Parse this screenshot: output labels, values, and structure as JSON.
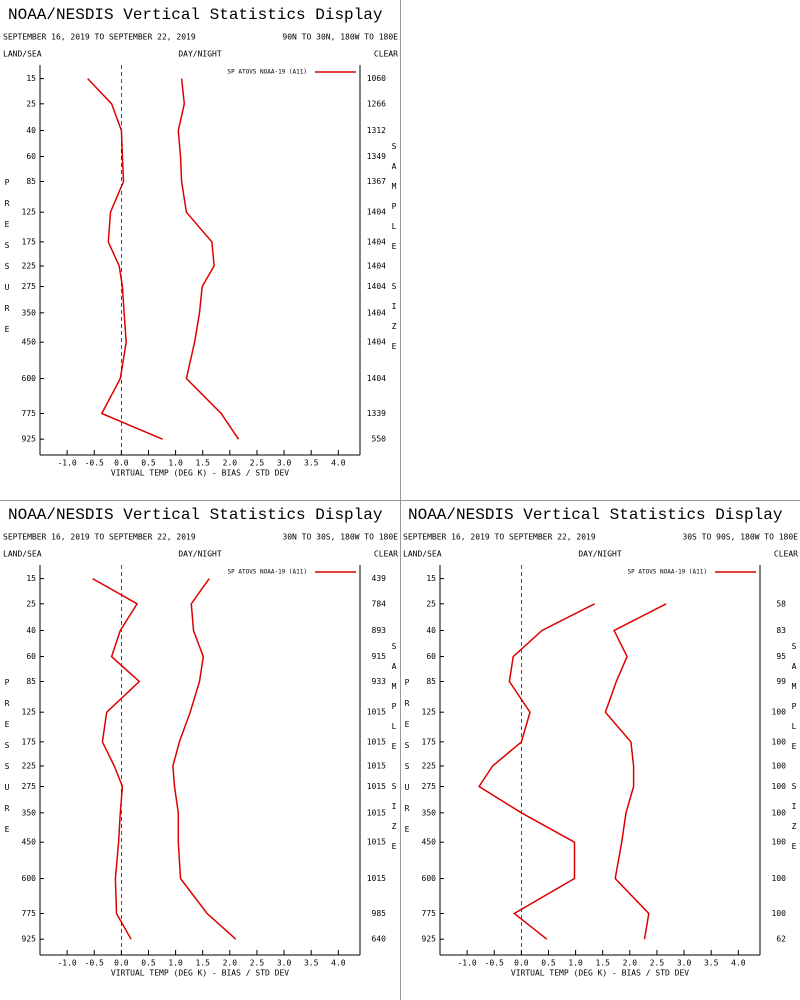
{
  "chart_data": [
    {
      "type": "line",
      "title": "NOAA/NESDIS Vertical Statistics Display",
      "period": "SEPTEMBER 16, 2019 TO SEPTEMBER 22, 2019",
      "region": "90N TO 30N, 180W TO 180E",
      "land_sea": "LAND/SEA",
      "day_night": "DAY/NIGHT",
      "sky": "CLEAR",
      "ylabel": "PRESSURE",
      "y2label": "SAMPLE SIZE",
      "xlabel": "VIRTUAL TEMP (DEG K) - BIAS / STD DEV",
      "legend": "SP ATOVS NOAA-19 (A11)",
      "y": [
        15,
        25,
        40,
        60,
        85,
        125,
        175,
        225,
        275,
        350,
        450,
        600,
        775,
        925
      ],
      "sample_sizes": [
        1060,
        1266,
        1312,
        1349,
        1367,
        1404,
        1404,
        1404,
        1404,
        1404,
        1404,
        1404,
        1339,
        550
      ],
      "series": [
        {
          "color": "#dd0000",
          "values": [
            -0.62,
            -0.18,
            0.0,
            0.02,
            0.04,
            -0.2,
            -0.24,
            -0.04,
            0.02,
            0.05,
            0.09,
            -0.02,
            -0.36,
            0.76
          ]
        },
        {
          "color": "#dd0000",
          "values": [
            1.11,
            1.16,
            1.05,
            1.09,
            1.11,
            1.2,
            1.67,
            1.71,
            1.49,
            1.44,
            1.35,
            1.2,
            1.84,
            2.16
          ]
        }
      ],
      "xlim": [
        -1.5,
        4.4
      ],
      "ylim": [
        11,
        1027
      ],
      "xticks": [
        {
          "value": -1,
          "label": "-1.0"
        },
        -0.5,
        {
          "value": 0,
          "label": "0.0"
        },
        0.5,
        {
          "value": 1,
          "label": "1.0"
        },
        1.5,
        {
          "value": 2,
          "label": "2.0"
        },
        2.5,
        {
          "value": 3,
          "label": "3.0"
        },
        3.5,
        {
          "value": 4,
          "label": "4.0"
        }
      ],
      "yticks": [
        15,
        25,
        40,
        60,
        85,
        125,
        175,
        225,
        275,
        350,
        450,
        600,
        775,
        925
      ]
    },
    {
      "type": "line",
      "title": "NOAA/NESDIS Vertical Statistics Display",
      "period": "SEPTEMBER 16, 2019 TO SEPTEMBER 22, 2019",
      "region": "30N TO 30S, 180W TO 180E",
      "land_sea": "LAND/SEA",
      "day_night": "DAY/NIGHT",
      "sky": "CLEAR",
      "ylabel": "PRESSURE",
      "y2label": "SAMPLE SIZE",
      "xlabel": "VIRTUAL TEMP (DEG K) - BIAS / STD DEV",
      "legend": "SP ATOVS NOAA-19 (A11)",
      "y": [
        15,
        25,
        40,
        60,
        85,
        125,
        175,
        225,
        275,
        350,
        450,
        600,
        775,
        925
      ],
      "sample_sizes": [
        439,
        784,
        893,
        915,
        933,
        1015,
        1015,
        1015,
        1015,
        1015,
        1015,
        1015,
        985,
        640
      ],
      "series": [
        {
          "color": "#dd0000",
          "values": [
            -0.53,
            0.29,
            -0.02,
            -0.18,
            0.33,
            -0.27,
            -0.35,
            -0.13,
            0.02,
            -0.02,
            -0.05,
            -0.11,
            -0.09,
            0.18
          ]
        },
        {
          "color": "#dd0000",
          "values": [
            1.62,
            1.29,
            1.33,
            1.51,
            1.44,
            1.27,
            1.07,
            0.95,
            0.98,
            1.05,
            1.05,
            1.09,
            1.58,
            2.11
          ]
        }
      ],
      "xlim": [
        -1.5,
        4.4
      ],
      "ylim": [
        11,
        1027
      ],
      "xticks": [
        {
          "value": -1,
          "label": "-1.0"
        },
        -0.5,
        {
          "value": 0,
          "label": "0.0"
        },
        0.5,
        {
          "value": 1,
          "label": "1.0"
        },
        1.5,
        {
          "value": 2,
          "label": "2.0"
        },
        2.5,
        {
          "value": 3,
          "label": "3.0"
        },
        3.5,
        {
          "value": 4,
          "label": "4.0"
        }
      ],
      "yticks": [
        15,
        25,
        40,
        60,
        85,
        125,
        175,
        225,
        275,
        350,
        450,
        600,
        775,
        925
      ]
    },
    {
      "type": "line",
      "title": "NOAA/NESDIS Vertical Statistics Display",
      "period": "SEPTEMBER 16, 2019 TO SEPTEMBER 22, 2019",
      "region": "30S TO 90S, 180W TO 180E",
      "land_sea": "LAND/SEA",
      "day_night": "DAY/NIGHT",
      "sky": "CLEAR",
      "ylabel": "PRESSURE",
      "y2label": "SAMPLE SIZE",
      "xlabel": "VIRTUAL TEMP (DEG K) - BIAS / STD DEV",
      "legend": "SP ATOVS NOAA-19 (A11)",
      "y": [
        15,
        25,
        40,
        60,
        85,
        125,
        175,
        225,
        275,
        350,
        450,
        600,
        775,
        925
      ],
      "sample_sizes": [
        null,
        58,
        83,
        95,
        99,
        100,
        100,
        100,
        100,
        100,
        100,
        100,
        100,
        62
      ],
      "series": [
        {
          "color": "#dd0000",
          "values": [
            null,
            1.35,
            0.38,
            -0.15,
            -0.22,
            0.16,
            0.0,
            -0.53,
            -0.78,
            0.0,
            0.98,
            0.98,
            -0.13,
            0.47
          ]
        },
        {
          "color": "#dd0000",
          "values": [
            null,
            2.67,
            1.71,
            1.95,
            1.75,
            1.55,
            2.02,
            2.07,
            2.07,
            1.93,
            1.85,
            1.73,
            2.35,
            2.27
          ]
        }
      ],
      "xlim": [
        -1.5,
        4.4
      ],
      "ylim": [
        11,
        1027
      ],
      "xticks": [
        {
          "value": -1,
          "label": "-1.0"
        },
        -0.5,
        {
          "value": 0,
          "label": "0.0"
        },
        0.5,
        {
          "value": 1,
          "label": "1.0"
        },
        1.5,
        {
          "value": 2,
          "label": "2.0"
        },
        2.5,
        {
          "value": 3,
          "label": "3.0"
        },
        3.5,
        {
          "value": 4,
          "label": "4.0"
        }
      ],
      "yticks": [
        15,
        25,
        40,
        60,
        85,
        125,
        175,
        225,
        275,
        350,
        450,
        600,
        775,
        925
      ]
    }
  ]
}
